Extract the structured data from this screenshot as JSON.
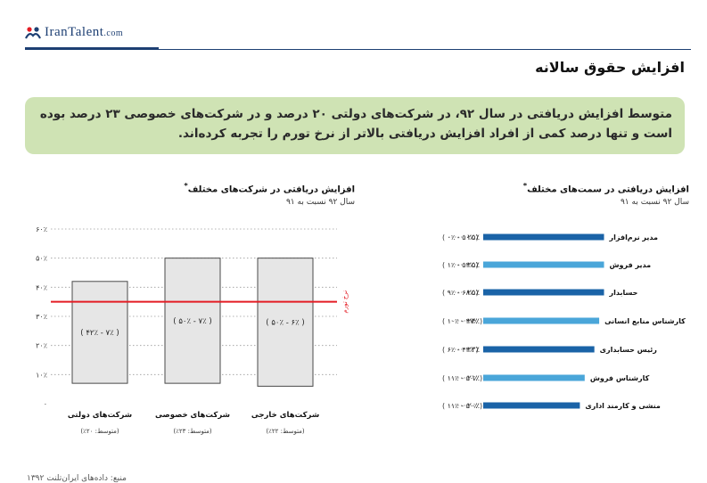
{
  "logo": {
    "text": "IranTalent",
    "suffix": ".com"
  },
  "heading": "افزایش حقوق سالانه",
  "summary": "متوسط افزایش دریافتی در سال ۹۲، در شرکت‌های دولتی ۲۰ درصد و در شرکت‌های خصوصی ۲۳ درصد بوده است و تنها درصد کمی از افراد افزایش دریافتی بالاتر از نرخ تورم را تجربه کرده‌اند.",
  "colors": {
    "accent": "#1d3f73",
    "bar_dark": "#1a63a7",
    "bar_light": "#4aa6d9",
    "box_fill": "#e6e6e6",
    "inflation": "#e41c24",
    "summary_bg": "#cfe3b4"
  },
  "left_chart": {
    "title": "افزایش دریافتی در شرکت‌های مختلف",
    "title_mark": "*",
    "subtitle": "سال ۹۲ نسبت به ۹۱"
  },
  "right_chart": {
    "title": "افزایش دریافتی در سمت‌های مختلف",
    "title_mark": "*",
    "subtitle": "سال ۹۲ نسبت به ۹۱"
  },
  "footer": "منبع: داده‌های ایران‌تلنت ۱۳۹۲",
  "chart_data": [
    {
      "type": "bar",
      "title": "افزایش دریافتی در شرکت‌های مختلف",
      "subtitle": "سال ۹۲ نسبت به ۹۱",
      "ylim": [
        0,
        60
      ],
      "yticks": [
        0,
        10,
        20,
        30,
        40,
        50,
        60
      ],
      "ytick_labels": [
        "۰",
        "۱۰٪",
        "۲۰٪",
        "۳۰٪",
        "۴۰٪",
        "۵۰٪",
        "۶۰٪"
      ],
      "grid": true,
      "categories": [
        "شرکت‌های دولتی",
        "شرکت‌های خصوصی",
        "شرکت‌های خارجی"
      ],
      "averages": [
        "(متوسط: ۲۰٪)",
        "(متوسط: ۲۳٪)",
        "(متوسط: ۲۲٪)"
      ],
      "ranges": [
        [
          7,
          42
        ],
        [
          7,
          50
        ],
        [
          6,
          50
        ]
      ],
      "range_labels": [
        "( ۷٪ - ۴۲٪ )",
        "( ۷٪ - ۵۰٪ )",
        "( ۶٪ - ۵۰٪ )"
      ],
      "reference_line": {
        "label": "نرخ تورم",
        "value": 35
      }
    },
    {
      "type": "bar",
      "orientation": "horizontal",
      "title": "افزایش دریافتی در سمت‌های مختلف",
      "subtitle": "سال ۹۲ نسبت به ۹۱",
      "categories": [
        "مدیر نرم‌افزار",
        "مدیر فروش",
        "حسابدار",
        "کارشناس منابع انسانی",
        "رئیس حسابداری",
        "کارشناس فروش",
        "منشی و کارمند اداری"
      ],
      "values": [
        25,
        25,
        25,
        24,
        23,
        21,
        20
      ],
      "value_labels": [
        "۲۵٪",
        "۲۵٪",
        "۲۵٪",
        "۲۴٪",
        "۲۳٪",
        "۲۱٪",
        "۲۰٪"
      ],
      "range_labels": [
        "( ۵۰٪ - ۰٪ )",
        "( ۵۳٪ - ۱٪ )",
        "( ۶۸٪ - ۹٪ )",
        "( ۴۷٪ - ۱۰٪ )",
        "( ۴۳٪ - ۶٪ )",
        "( ۵۰٪ - ۱۱٪ )",
        "( ۵۰٪ - ۱۱٪ )"
      ],
      "series_colors": [
        "#1a63a7",
        "#4aa6d9",
        "#1a63a7",
        "#4aa6d9",
        "#1a63a7",
        "#4aa6d9",
        "#1a63a7"
      ]
    }
  ]
}
